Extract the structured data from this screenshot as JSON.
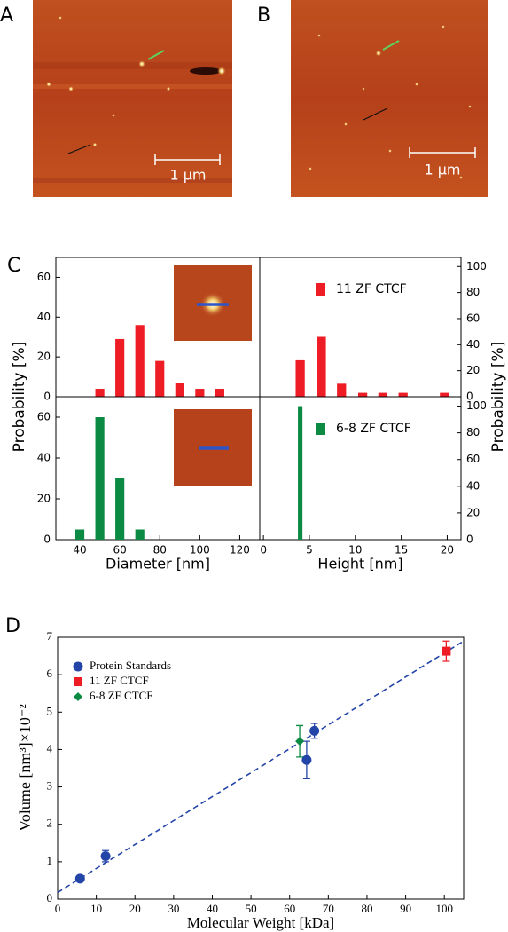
{
  "panels": {
    "labels": [
      "A",
      "B",
      "C",
      "D"
    ],
    "scale_bars": [
      "1 µm",
      "1 µm"
    ]
  },
  "chart_data": [
    {
      "type": "bar",
      "ylabel": "Probability [%]",
      "xlim": [
        28,
        130
      ],
      "ylim": [
        0,
        70
      ],
      "yticks": [
        0,
        20,
        40,
        60
      ],
      "series": [
        {
          "name": "11 ZF CTCF",
          "color": "#ee1c24",
          "x": [
            50,
            60,
            70,
            80,
            90,
            100,
            110
          ],
          "values": [
            4,
            29,
            36,
            18,
            7,
            4,
            4
          ]
        }
      ],
      "legend": false
    },
    {
      "type": "bar",
      "ylabel": "Probability [%]",
      "xlim": [
        -0.4,
        21.5
      ],
      "ylim": [
        0,
        107
      ],
      "yticks": [
        0,
        20,
        40,
        60,
        80,
        100
      ],
      "series": [
        {
          "name": "11 ZF CTCF",
          "color": "#ee1c24",
          "x": [
            4,
            6.3,
            8.5,
            10.8,
            13,
            15.2,
            19.7
          ],
          "values": [
            28,
            46,
            10,
            3,
            3,
            3,
            3
          ]
        }
      ],
      "legend": true
    },
    {
      "type": "bar",
      "xlabel": "Diameter [nm]",
      "xlim": [
        28,
        130
      ],
      "ylim": [
        0,
        70
      ],
      "xticks": [
        40,
        60,
        80,
        100,
        120
      ],
      "yticks": [
        0,
        20,
        40,
        60
      ],
      "series": [
        {
          "name": "6-8 ZF CTCF",
          "color": "#0b8a43",
          "x": [
            40,
            50,
            60,
            70
          ],
          "values": [
            5,
            60,
            30,
            5
          ]
        }
      ],
      "legend": false
    },
    {
      "type": "bar",
      "xlabel": "Height [nm]",
      "xlim": [
        -0.4,
        21.5
      ],
      "ylim": [
        0,
        107
      ],
      "xticks": [
        0,
        5,
        10,
        15,
        20
      ],
      "yticks": [
        0,
        20,
        40,
        60,
        80,
        100
      ],
      "series": [
        {
          "name": "6-8 ZF CTCF",
          "color": "#0b8a43",
          "x": [
            4
          ],
          "values": [
            100
          ]
        }
      ],
      "legend": true
    },
    {
      "type": "scatter",
      "xlabel": "Molecular Weight [kDa]",
      "ylabel": "Volume [nm³]×10⁻²",
      "xlim": [
        0,
        105
      ],
      "ylim": [
        0,
        7
      ],
      "xticks": [
        0,
        10,
        20,
        30,
        40,
        50,
        60,
        70,
        80,
        90,
        100
      ],
      "yticks": [
        0,
        1,
        2,
        3,
        4,
        5,
        6,
        7
      ],
      "series": [
        {
          "name": "Protein Standards",
          "color": "#2445a8",
          "marker": "circle",
          "x": [
            5.8,
            12.4,
            64.4,
            66.4
          ],
          "values": [
            0.55,
            1.15,
            3.72,
            4.5
          ],
          "errors": [
            0.05,
            0.15,
            0.5,
            0.2
          ]
        },
        {
          "name": "11 ZF CTCF",
          "color": "#ee1c24",
          "marker": "square",
          "x": [
            100.5
          ],
          "values": [
            6.63
          ],
          "errors": [
            0.27
          ]
        },
        {
          "name": "6-8 ZF CTCF",
          "color": "#0b8a43",
          "marker": "diamond",
          "x": [
            62.6
          ],
          "values": [
            4.22
          ],
          "errors": [
            0.42
          ]
        }
      ],
      "fit_line": {
        "color": "#2445a8",
        "x": [
          0,
          105
        ],
        "values": [
          0.18,
          6.9
        ]
      },
      "legend": true
    }
  ]
}
